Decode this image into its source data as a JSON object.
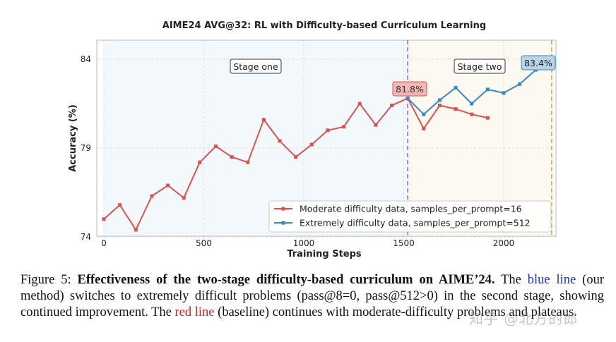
{
  "chart_data": {
    "type": "line",
    "title": "AIME24 AVG@32: RL with Difficulty-based Curriculum Learning",
    "xlabel": "Training Steps",
    "ylabel": "Accuracy (%)",
    "xlim": [
      0,
      2250
    ],
    "ylim": [
      74,
      85
    ],
    "xticks": [
      0,
      500,
      1000,
      1500,
      2000
    ],
    "yticks": [
      74,
      79,
      84
    ],
    "grid": true,
    "legend": "bottom-right",
    "series": [
      {
        "name": "Moderate difficulty data, samples_per_prompt=16",
        "color": "#d9534f",
        "x": [
          0,
          80,
          160,
          240,
          320,
          400,
          480,
          560,
          640,
          720,
          800,
          880,
          960,
          1040,
          1120,
          1200,
          1280,
          1360,
          1440,
          1520,
          1600,
          1680,
          1760,
          1840,
          1920
        ],
        "y": [
          75.0,
          75.8,
          74.4,
          76.3,
          76.9,
          76.2,
          78.2,
          79.1,
          78.5,
          78.2,
          80.6,
          79.4,
          78.5,
          79.2,
          80.0,
          80.2,
          81.5,
          80.3,
          81.4,
          81.8,
          80.1,
          81.4,
          81.2,
          80.9,
          80.7
        ]
      },
      {
        "name": "Extremely difficulty data, samples_per_prompt=512",
        "color": "#3a87c2",
        "x": [
          1520,
          1600,
          1680,
          1760,
          1840,
          1920,
          2000,
          2080,
          2160
        ],
        "y": [
          81.8,
          80.9,
          81.7,
          82.4,
          81.5,
          82.3,
          82.1,
          82.6,
          83.4
        ]
      }
    ],
    "annotations": {
      "stage_one": "Stage one",
      "stage_two": "Stage two",
      "switch_value": "81.8%",
      "final_value": "83.4%"
    },
    "stage_boundary_x": 1520,
    "end_marker_x": 2240
  },
  "caption": {
    "prefix": "Figure 5: ",
    "bold": "Effectiveness of the two-stage difficulty-based curriculum on AIME’24.",
    "part1": " The ",
    "blue_line": "blue line",
    "part2": " (our method) switches to extremely difficult problems (pass@8=0, pass@512>0) in the second stage, showing continued improvement. The ",
    "red_line": "red line",
    "part3": " (baseline) continues with moderate-difficulty problems and plateaus."
  },
  "watermark": "知乎 @北方的郎"
}
